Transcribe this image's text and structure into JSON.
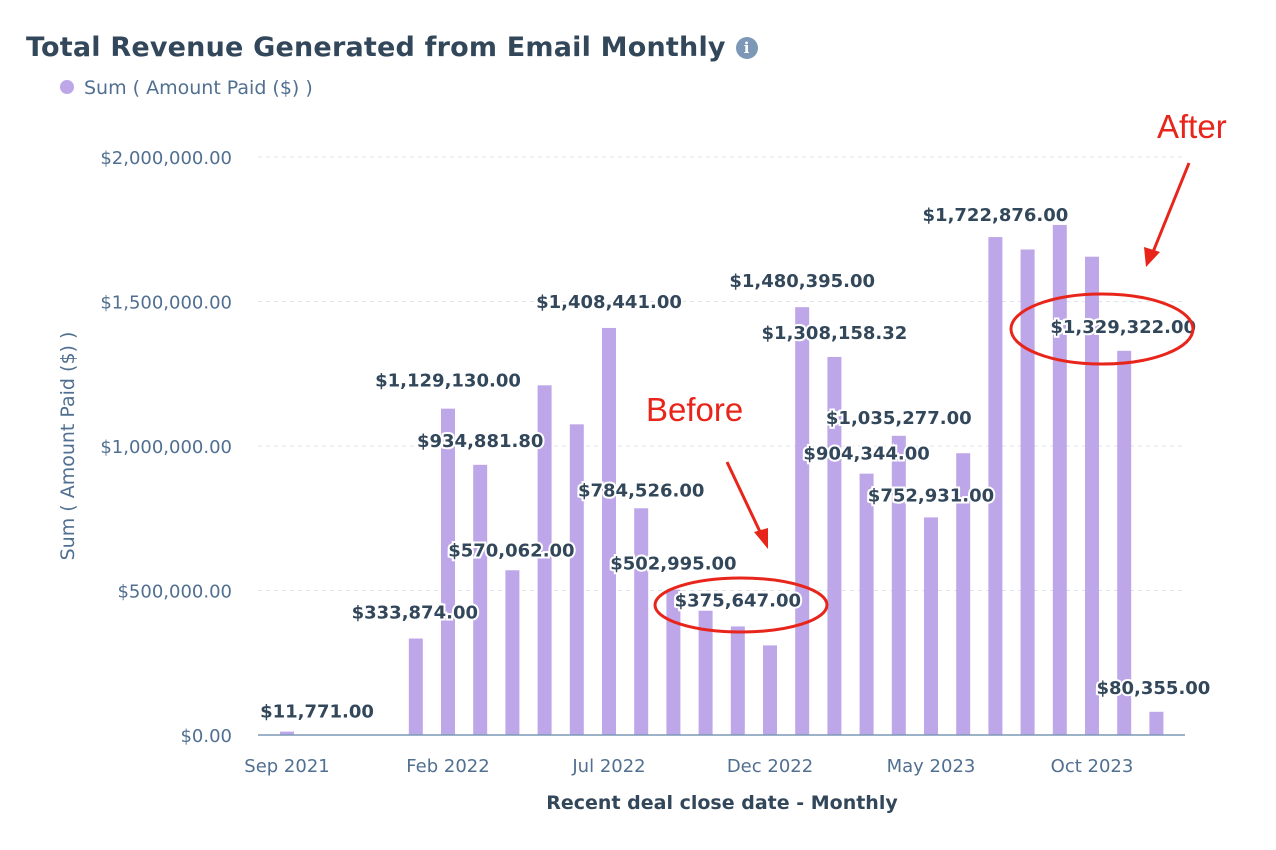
{
  "header": {
    "title": "Total Revenue Generated from Email Monthly",
    "info_icon": "info-icon",
    "legend_label": "Sum ( Amount Paid ($) )"
  },
  "colors": {
    "bar": "#bda7e8",
    "annotation": "#e8251b",
    "text_dark": "#33475b",
    "axis_text": "#516f90"
  },
  "annotations": {
    "before_label": "Before",
    "after_label": "After"
  },
  "chart_data": {
    "type": "bar",
    "title": "Total Revenue Generated from Email Monthly",
    "xlabel": "Recent deal close date - Monthly",
    "ylabel": "Sum ( Amount Paid ($) )",
    "ylim": [
      0,
      2000000
    ],
    "y_ticks": [
      "$0.00",
      "$500,000.00",
      "$1,000,000.00",
      "$1,500,000.00",
      "$2,000,000.00"
    ],
    "y_tick_values": [
      0,
      500000,
      1000000,
      1500000,
      2000000
    ],
    "x_tick_labels": [
      "Sep 2021",
      "Feb 2022",
      "Jul 2022",
      "Dec 2022",
      "May 2023",
      "Oct 2023"
    ],
    "grid": true,
    "legend": "top-left",
    "series": [
      {
        "name": "Sum ( Amount Paid ($) )",
        "categories": [
          "Sep 2021",
          "Oct 2021",
          "Nov 2021",
          "Dec 2021",
          "Jan 2022",
          "Feb 2022",
          "Mar 2022",
          "Apr 2022",
          "May 2022",
          "Jun 2022",
          "Jul 2022",
          "Aug 2022",
          "Sep 2022",
          "Oct 2022",
          "Nov 2022",
          "Dec 2022",
          "Jan 2023",
          "Feb 2023",
          "Mar 2023",
          "Apr 2023",
          "May 2023",
          "Jun 2023",
          "Jul 2023",
          "Aug 2023",
          "Sep 2023",
          "Oct 2023",
          "Nov 2023",
          "Dec 2023",
          "Jan 2024"
        ],
        "values": [
          11771,
          0,
          0,
          0,
          333874,
          1129130,
          934881.8,
          570062,
          1210000,
          1075000,
          1408441,
          784526,
          502995,
          430000,
          375647,
          310000,
          1480395,
          1308158.32,
          904344,
          1035277,
          752931,
          975000,
          1722876,
          1680000,
          1765000,
          1655000,
          1329322,
          80355,
          0
        ],
        "data_labels": [
          "$11,771.00",
          "",
          "",
          "",
          "$333,874.00",
          "$1,129,130.00",
          "$934,881.80",
          "$570,062.00",
          "",
          "",
          "$1,408,441.00",
          "$784,526.00",
          "$502,995.00",
          "",
          "$375,647.00",
          "",
          "$1,480,395.00",
          "$1,308,158.32",
          "$904,344.00",
          "$1,035,277.00",
          "$752,931.00",
          "",
          "$1,722,876.00",
          "",
          "",
          "",
          "$1,329,322.00",
          "$80,355.00",
          ""
        ]
      }
    ]
  }
}
